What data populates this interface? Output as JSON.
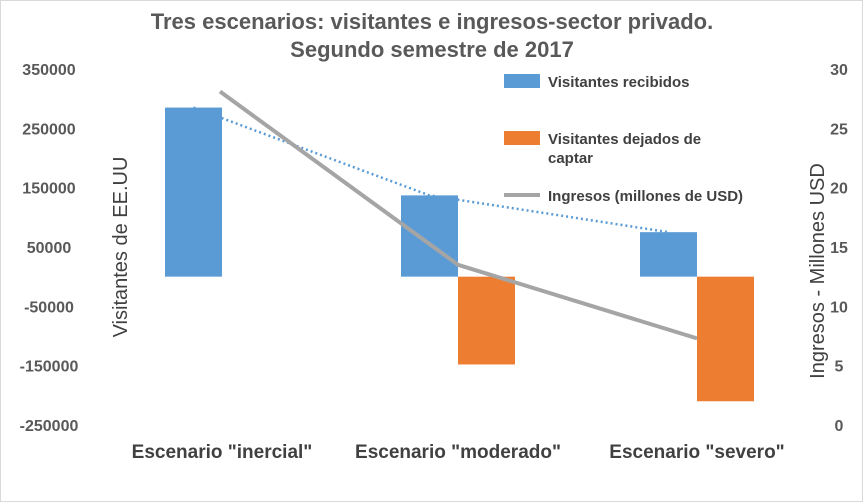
{
  "chart_data": {
    "type": "bar",
    "title_lines": [
      "Tres escenarios: visitantes e ingresos-sector privado.",
      "Segundo semestre de 2017"
    ],
    "categories": [
      "Escenario \"inercial\"",
      "Escenario \"moderado\"",
      "Escenario \"severo\""
    ],
    "ylabel": "Visitantes de EE.UU",
    "y2label": "Ingresos - Millones USD",
    "ylim": [
      -250000,
      350000
    ],
    "y_ticks": [
      350000,
      250000,
      150000,
      50000,
      -50000,
      -150000,
      -250000
    ],
    "y_tick_labels": [
      "350000",
      "250000",
      "150000",
      "50000",
      "-50000",
      "-150000",
      "-250000"
    ],
    "y2lim": [
      0,
      30
    ],
    "y2_ticks": [
      30,
      25,
      20,
      15,
      10,
      5,
      0
    ],
    "y2_tick_labels": [
      "30",
      "25",
      "20",
      "15",
      "10",
      "5",
      "0"
    ],
    "grid": false,
    "legend_position": "top-right",
    "legend": [
      {
        "label_lines": [
          "Visitantes recibidos"
        ],
        "color": "#5b9bd5",
        "kind": "bar"
      },
      {
        "label_lines": [
          "Visitantes dejados de",
          "captar"
        ],
        "color": "#ed7d31",
        "kind": "bar"
      },
      {
        "label_lines": [
          "Ingresos (millones de USD)"
        ],
        "color": "#a5a5a5",
        "kind": "line"
      }
    ],
    "series": [
      {
        "name": "Visitantes recibidos",
        "axis": "left",
        "type": "bar",
        "color": "#5b9bd5",
        "values": [
          285000,
          137000,
          75000
        ]
      },
      {
        "name": "Visitantes dejados de captar",
        "axis": "left",
        "type": "bar",
        "color": "#ed7d31",
        "values": [
          null,
          -148000,
          -210000
        ]
      },
      {
        "name": "Ingresos (millones de USD)",
        "axis": "right",
        "type": "line",
        "color": "#a5a5a5",
        "values": [
          28.1,
          13.5,
          7.3
        ]
      }
    ],
    "trendline": {
      "series": "Visitantes recibidos",
      "style": "dotted",
      "color": "#5b9bd5"
    }
  }
}
